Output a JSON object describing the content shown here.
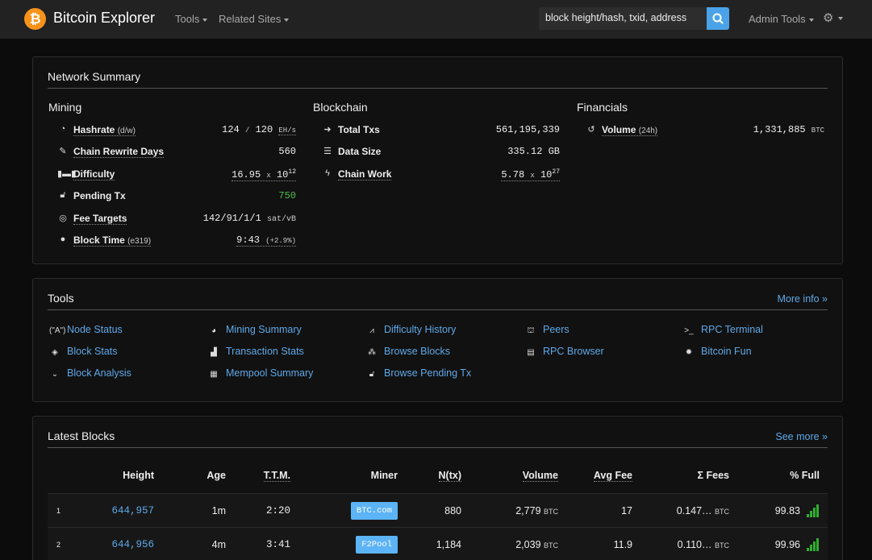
{
  "navbar": {
    "brand_icon": "₿",
    "brand": "Bitcoin Explorer",
    "tools": "Tools",
    "related_sites": "Related Sites",
    "search_placeholder": "block height/hash, txid, address",
    "admin_tools": "Admin Tools",
    "settings_icon": "gear-icon"
  },
  "network_summary": {
    "title": "Network Summary",
    "mining": {
      "heading": "Mining",
      "hashrate": {
        "label": "Hashrate",
        "sub": "(d/w)",
        "v1": "124",
        "sep": "/",
        "v2": "120",
        "unit": "EH/s"
      },
      "chain_rewrite": {
        "label": "Chain Rewrite Days",
        "value": "560"
      },
      "difficulty": {
        "label": "Difficulty",
        "mant": "16.95",
        "x": "x",
        "base": "10",
        "exp": "12"
      },
      "pending": {
        "label": "Pending Tx",
        "value": "750"
      },
      "fee_targets": {
        "label": "Fee Targets",
        "value": "142/91/1/1",
        "unit": "sat/vB"
      },
      "block_time": {
        "label": "Block Time",
        "sub": "(e319)",
        "value": "9:43",
        "pct": "(+2.9%)"
      }
    },
    "blockchain": {
      "heading": "Blockchain",
      "total_txs": {
        "label": "Total Txs",
        "value": "561,195,339"
      },
      "data_size": {
        "label": "Data Size",
        "value": "335.12 GB"
      },
      "chain_work": {
        "label": "Chain Work",
        "mant": "5.78",
        "x": "x",
        "base": "10",
        "exp": "27"
      }
    },
    "financials": {
      "heading": "Financials",
      "volume": {
        "label": "Volume",
        "sub": "(24h)",
        "value": "1,331,885",
        "unit": "BTC"
      }
    }
  },
  "tools": {
    "title": "Tools",
    "more": "More info »",
    "items": [
      {
        "label": "Node Status",
        "icon": "antenna-icon"
      },
      {
        "label": "Mining Summary",
        "icon": "pie-icon"
      },
      {
        "label": "Difficulty History",
        "icon": "line-chart-icon"
      },
      {
        "label": "Peers",
        "icon": "sitemap-icon"
      },
      {
        "label": "RPC Terminal",
        "icon": "terminal-icon"
      },
      {
        "label": "Block Stats",
        "icon": "layers-icon"
      },
      {
        "label": "Transaction Stats",
        "icon": "bar-chart-icon"
      },
      {
        "label": "Browse Blocks",
        "icon": "cubes-icon"
      },
      {
        "label": "RPC Browser",
        "icon": "book-icon"
      },
      {
        "label": "Bitcoin Fun",
        "icon": "sun-icon"
      },
      {
        "label": "Block Analysis",
        "icon": "chevrons-down-icon"
      },
      {
        "label": "Mempool Summary",
        "icon": "list-icon"
      },
      {
        "label": "Browse Pending Tx",
        "icon": "unlock-icon"
      }
    ]
  },
  "latest_blocks": {
    "title": "Latest Blocks",
    "more": "See more »",
    "headers": {
      "height": "Height",
      "age": "Age",
      "ttm": "T.T.M.",
      "miner": "Miner",
      "ntx": "N(tx)",
      "volume": "Volume",
      "avg_fee": "Avg Fee",
      "fees": "Σ Fees",
      "full": "% Full"
    },
    "rows": [
      {
        "n": "1",
        "height": "644,957",
        "age": "1m",
        "ttm": "2:20",
        "miner": "BTC.com",
        "ntx": "880",
        "volume": "2,779",
        "vol_unit": "BTC",
        "avg_fee": "17",
        "fees": "0.147…",
        "fees_unit": "BTC",
        "full": "99.83",
        "fill": 0.9983
      },
      {
        "n": "2",
        "height": "644,956",
        "age": "4m",
        "ttm": "3:41",
        "miner": "F2Pool",
        "ntx": "1,184",
        "volume": "2,039",
        "vol_unit": "BTC",
        "avg_fee": "11.9",
        "fees": "0.110…",
        "fees_unit": "BTC",
        "full": "99.96",
        "fill": 0.9996
      }
    ]
  }
}
